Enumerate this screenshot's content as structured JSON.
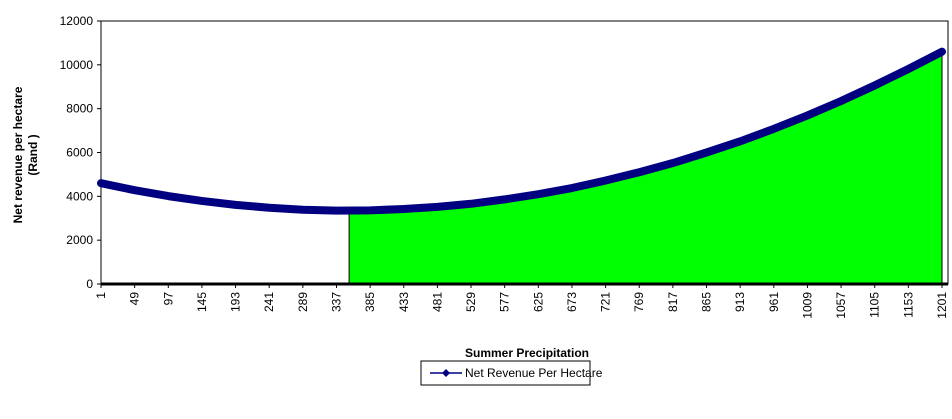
{
  "chart_data": {
    "type": "line",
    "y_label": [
      "Net revenue per hectare",
      "(Rand )"
    ],
    "x_label": "Summer Precipitation",
    "x": [
      1,
      49,
      97,
      145,
      193,
      241,
      289,
      337,
      385,
      433,
      481,
      529,
      577,
      625,
      673,
      721,
      769,
      817,
      865,
      913,
      961,
      1009,
      1057,
      1105,
      1153,
      1201
    ],
    "series": [
      {
        "name": "Net Revenue Per Hectare",
        "color": "#000080",
        "values": [
          4600,
          4280,
          4010,
          3790,
          3610,
          3480,
          3390,
          3350,
          3360,
          3420,
          3520,
          3660,
          3860,
          4100,
          4380,
          4720,
          5100,
          5520,
          6000,
          6510,
          7080,
          7690,
          8350,
          9060,
          9810,
          10600
        ]
      }
    ],
    "shade_from": 355,
    "shade_color": "#00ff00",
    "xlim": [
      1,
      1201
    ],
    "xticks": [
      1,
      49,
      97,
      145,
      193,
      241,
      289,
      337,
      385,
      433,
      481,
      529,
      577,
      625,
      673,
      721,
      769,
      817,
      865,
      913,
      961,
      1009,
      1057,
      1105,
      1153,
      1201
    ],
    "ylim": [
      0,
      12000
    ],
    "yticks": [
      0,
      2000,
      4000,
      6000,
      8000,
      10000,
      12000
    ]
  }
}
